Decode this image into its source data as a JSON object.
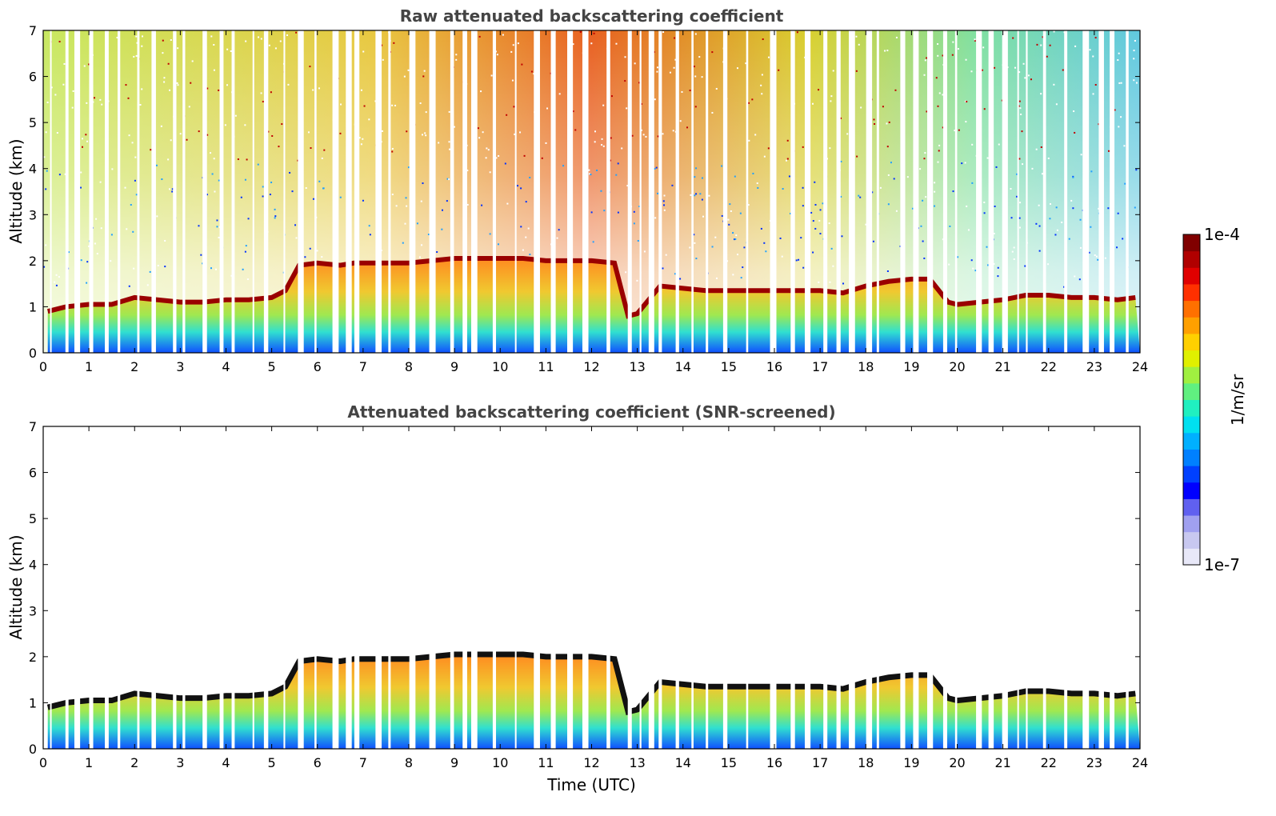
{
  "chart_data": [
    {
      "type": "heatmap",
      "title": "Raw attenuated backscattering coefficient",
      "xlabel": "",
      "ylabel": "Altitude (km)",
      "xlim": [
        0,
        24
      ],
      "ylim": [
        0,
        7
      ],
      "xticks": [
        "0",
        "1",
        "2",
        "3",
        "4",
        "5",
        "6",
        "7",
        "8",
        "9",
        "10",
        "11",
        "12",
        "13",
        "14",
        "15",
        "16",
        "17",
        "18",
        "19",
        "20",
        "21",
        "22",
        "23",
        "24"
      ],
      "yticks": [
        "0",
        "1",
        "2",
        "3",
        "4",
        "5",
        "6",
        "7"
      ],
      "layer_top_km": {
        "time_utc": [
          0.1,
          0.5,
          1,
          1.5,
          2,
          2.5,
          3,
          3.5,
          4,
          4.5,
          5,
          5.3,
          5.6,
          6,
          6.5,
          6.8,
          7,
          7.5,
          8,
          8.5,
          9,
          9.5,
          10,
          10.5,
          11,
          11.5,
          12,
          12.5,
          12.8,
          13,
          13.5,
          14,
          14.5,
          15,
          15.5,
          16,
          16.5,
          17,
          17.5,
          18,
          18.5,
          19,
          19.4,
          19.8,
          20,
          20.5,
          21,
          21.5,
          22,
          22.5,
          23,
          23.5,
          23.9
        ],
        "altitude_km": [
          0.9,
          1.0,
          1.05,
          1.05,
          1.2,
          1.15,
          1.1,
          1.1,
          1.15,
          1.15,
          1.2,
          1.35,
          1.9,
          1.95,
          1.9,
          1.95,
          1.95,
          1.95,
          1.95,
          2.0,
          2.05,
          2.05,
          2.05,
          2.05,
          2.0,
          2.0,
          2.0,
          1.95,
          0.8,
          0.85,
          1.45,
          1.4,
          1.35,
          1.35,
          1.35,
          1.35,
          1.35,
          1.35,
          1.3,
          1.45,
          1.55,
          1.6,
          1.6,
          1.1,
          1.05,
          1.1,
          1.15,
          1.25,
          1.25,
          1.2,
          1.2,
          1.15,
          1.2
        ]
      },
      "colorscale_label": "1/m/sr",
      "colorscale_range": [
        "1e-7",
        "1e-4"
      ]
    },
    {
      "type": "heatmap",
      "title": "Attenuated backscattering coefficient (SNR-screened)",
      "xlabel": "Time (UTC)",
      "ylabel": "Altitude (km)",
      "xlim": [
        0,
        24
      ],
      "ylim": [
        0,
        7
      ],
      "xticks": [
        "0",
        "1",
        "2",
        "3",
        "4",
        "5",
        "6",
        "7",
        "8",
        "9",
        "10",
        "11",
        "12",
        "13",
        "14",
        "15",
        "16",
        "17",
        "18",
        "19",
        "20",
        "21",
        "22",
        "23",
        "24"
      ],
      "yticks": [
        "0",
        "1",
        "2",
        "3",
        "4",
        "5",
        "6",
        "7"
      ],
      "colorscale_label": "1/m/sr",
      "colorscale_range": [
        "1e-7",
        "1e-4"
      ]
    }
  ],
  "colorbar": {
    "label": "1/m/sr",
    "max_label": "1e-4",
    "min_label": "1e-7",
    "colors": [
      "#e8e8f8",
      "#c8c8f0",
      "#a0a0f0",
      "#6060f0",
      "#0000ff",
      "#0040ff",
      "#0080ff",
      "#00b0ff",
      "#00e0f0",
      "#20f0c0",
      "#60f080",
      "#a0f040",
      "#e0f000",
      "#ffd000",
      "#ffa000",
      "#ff7000",
      "#ff3000",
      "#e00000",
      "#b00000",
      "#800000"
    ]
  }
}
